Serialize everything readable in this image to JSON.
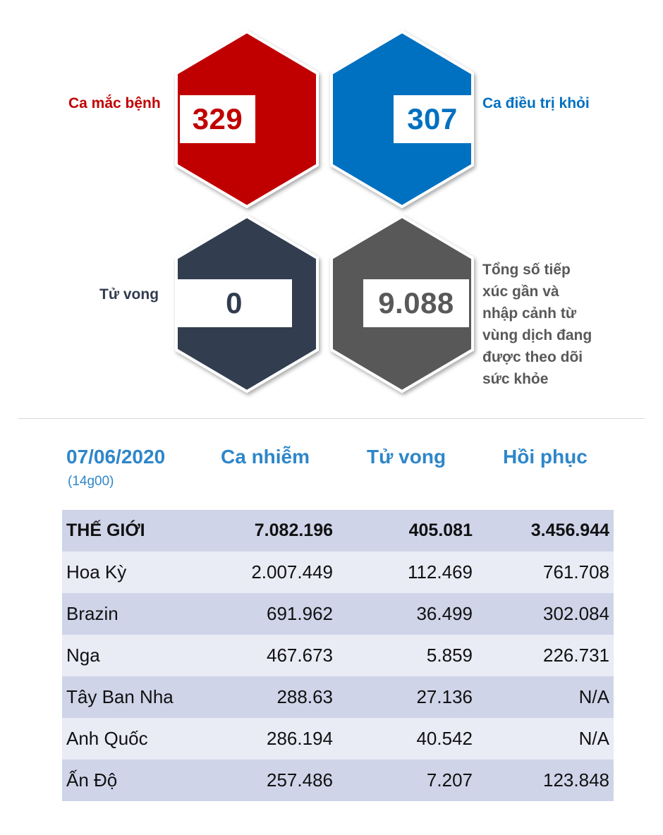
{
  "stats": {
    "cases": {
      "label": "Ca mắc bệnh",
      "value": "329",
      "color": "#c00000"
    },
    "recovered": {
      "label": "Ca điều trị khỏi",
      "value": "307",
      "color": "#0070c0"
    },
    "deaths": {
      "label": "Tử vong",
      "value": "0",
      "color": "#323c50"
    },
    "monitored": {
      "label_lines": [
        "Tổng số tiếp",
        "xúc gần và",
        "nhập cảnh từ",
        "vùng dịch đang",
        "được theo dõi",
        "sức khỏe"
      ],
      "value": "9.088",
      "color": "#595959"
    }
  },
  "table": {
    "date": "07/06/2020",
    "time": "(14g00)",
    "headers": [
      "Ca nhiễm",
      "Tử vong",
      "Hồi phục"
    ],
    "header_color": "#2e86c9",
    "rows": [
      {
        "name": "THẾ GIỚI",
        "cases": "7.082.196",
        "deaths": "405.081",
        "recovered": "3.456.944"
      },
      {
        "name": "Hoa Kỳ",
        "cases": "2.007.449",
        "deaths": "112.469",
        "recovered": "761.708"
      },
      {
        "name": "Brazin",
        "cases": "691.962",
        "deaths": "36.499",
        "recovered": "302.084"
      },
      {
        "name": "Nga",
        "cases": "467.673",
        "deaths": "5.859",
        "recovered": "226.731"
      },
      {
        "name": "Tây Ban Nha",
        "cases": "288.63",
        "deaths": "27.136",
        "recovered": "N/A"
      },
      {
        "name": "Anh Quốc",
        "cases": "286.194",
        "deaths": "40.542",
        "recovered": "N/A"
      },
      {
        "name": "Ấn Độ",
        "cases": "257.486",
        "deaths": "7.207",
        "recovered": "123.848"
      }
    ]
  }
}
